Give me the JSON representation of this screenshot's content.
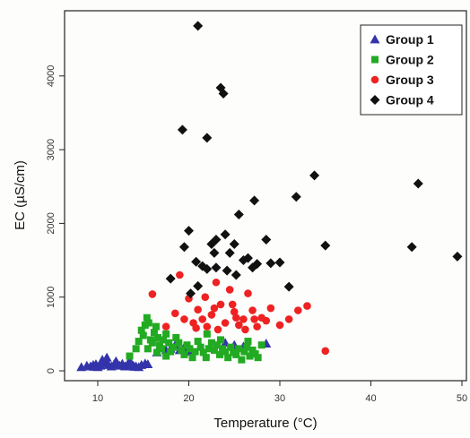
{
  "chart_data": {
    "type": "scatter",
    "xlabel": "Temperature (°C)",
    "ylabel": "EC (µS/cm)",
    "xlim": [
      7,
      51
    ],
    "ylim": [
      -150,
      4750
    ],
    "x_ticks": [
      10,
      20,
      30,
      40,
      50
    ],
    "y_ticks": [
      0,
      1000,
      2000,
      3000,
      4000
    ],
    "grid": false,
    "legend_position": "top-right",
    "series": [
      {
        "name": "Group 1",
        "marker": "triangle",
        "color": "#3333aa",
        "points": [
          [
            8.2,
            50
          ],
          [
            8.8,
            70
          ],
          [
            9.2,
            60
          ],
          [
            9.5,
            80
          ],
          [
            9.8,
            90
          ],
          [
            10.0,
            50
          ],
          [
            10.3,
            70
          ],
          [
            10.6,
            100
          ],
          [
            10.9,
            120
          ],
          [
            11.2,
            80
          ],
          [
            11.5,
            60
          ],
          [
            11.8,
            90
          ],
          [
            12.1,
            110
          ],
          [
            12.4,
            70
          ],
          [
            12.7,
            95
          ],
          [
            13.0,
            60
          ],
          [
            13.3,
            85
          ],
          [
            13.6,
            100
          ],
          [
            13.9,
            70
          ],
          [
            14.2,
            60
          ],
          [
            14.5,
            50
          ],
          [
            14.8,
            80
          ],
          [
            15.2,
            100
          ],
          [
            15.5,
            90
          ],
          [
            11.0,
            180
          ],
          [
            10.5,
            150
          ],
          [
            12.0,
            130
          ],
          [
            13.5,
            140
          ],
          [
            9.6,
            55
          ],
          [
            14.0,
            55
          ],
          [
            16.5,
            250
          ],
          [
            17.0,
            320
          ],
          [
            17.5,
            280
          ],
          [
            18.0,
            300
          ],
          [
            18.5,
            350
          ],
          [
            19.0,
            280
          ],
          [
            19.5,
            320
          ],
          [
            20.0,
            260
          ],
          [
            24.0,
            380
          ],
          [
            25.0,
            350
          ],
          [
            26.0,
            330
          ],
          [
            28.5,
            370
          ]
        ]
      },
      {
        "name": "Group 2",
        "marker": "square",
        "color": "#22aa22",
        "points": [
          [
            14.5,
            400
          ],
          [
            14.8,
            550
          ],
          [
            15.0,
            480
          ],
          [
            15.2,
            620
          ],
          [
            15.4,
            720
          ],
          [
            15.6,
            650
          ],
          [
            15.8,
            420
          ],
          [
            16.0,
            380
          ],
          [
            16.2,
            520
          ],
          [
            16.4,
            600
          ],
          [
            16.6,
            450
          ],
          [
            16.8,
            350
          ],
          [
            17.0,
            300
          ],
          [
            17.2,
            420
          ],
          [
            17.5,
            500
          ],
          [
            17.8,
            380
          ],
          [
            18.0,
            260
          ],
          [
            18.3,
            320
          ],
          [
            18.6,
            450
          ],
          [
            18.9,
            380
          ],
          [
            19.2,
            280
          ],
          [
            19.5,
            220
          ],
          [
            19.8,
            350
          ],
          [
            20.1,
            300
          ],
          [
            20.4,
            180
          ],
          [
            20.7,
            260
          ],
          [
            21.0,
            400
          ],
          [
            21.3,
            320
          ],
          [
            21.6,
            250
          ],
          [
            21.9,
            180
          ],
          [
            22.2,
            300
          ],
          [
            22.5,
            380
          ],
          [
            22.8,
            280
          ],
          [
            23.1,
            350
          ],
          [
            23.4,
            220
          ],
          [
            23.7,
            300
          ],
          [
            24.0,
            260
          ],
          [
            24.3,
            180
          ],
          [
            24.6,
            320
          ],
          [
            24.9,
            250
          ],
          [
            25.2,
            220
          ],
          [
            25.5,
            300
          ],
          [
            25.8,
            150
          ],
          [
            26.1,
            260
          ],
          [
            26.4,
            320
          ],
          [
            26.7,
            200
          ],
          [
            27.0,
            280
          ],
          [
            27.3,
            230
          ],
          [
            27.6,
            180
          ],
          [
            28.0,
            350
          ],
          [
            15.5,
            300
          ],
          [
            16.5,
            250
          ],
          [
            17.5,
            200
          ],
          [
            14.2,
            300
          ],
          [
            13.5,
            200
          ],
          [
            22.0,
            500
          ],
          [
            23.5,
            420
          ],
          [
            26.5,
            400
          ]
        ]
      },
      {
        "name": "Group 3",
        "marker": "circle",
        "color": "#ee2222",
        "points": [
          [
            16.0,
            1040
          ],
          [
            17.5,
            600
          ],
          [
            18.5,
            780
          ],
          [
            19.0,
            1300
          ],
          [
            19.5,
            700
          ],
          [
            20.0,
            980
          ],
          [
            20.5,
            650
          ],
          [
            21.0,
            830
          ],
          [
            21.5,
            700
          ],
          [
            22.0,
            600
          ],
          [
            22.5,
            760
          ],
          [
            23.0,
            1200
          ],
          [
            23.5,
            900
          ],
          [
            24.0,
            650
          ],
          [
            24.5,
            1100
          ],
          [
            25.0,
            800
          ],
          [
            25.5,
            620
          ],
          [
            26.0,
            700
          ],
          [
            26.5,
            1050
          ],
          [
            27.0,
            820
          ],
          [
            27.5,
            600
          ],
          [
            28.0,
            720
          ],
          [
            29.0,
            850
          ],
          [
            30.0,
            620
          ],
          [
            31.0,
            700
          ],
          [
            32.0,
            820
          ],
          [
            33.0,
            880
          ],
          [
            35.0,
            270
          ],
          [
            20.8,
            580
          ],
          [
            22.8,
            850
          ],
          [
            24.8,
            900
          ],
          [
            26.2,
            560
          ],
          [
            21.8,
            1000
          ],
          [
            23.2,
            560
          ],
          [
            25.2,
            720
          ],
          [
            27.2,
            700
          ],
          [
            28.5,
            680
          ]
        ]
      },
      {
        "name": "Group 4",
        "marker": "diamond",
        "color": "#111111",
        "points": [
          [
            21.0,
            4680
          ],
          [
            23.5,
            3840
          ],
          [
            23.8,
            3760
          ],
          [
            19.3,
            3270
          ],
          [
            22.0,
            3160
          ],
          [
            33.8,
            2650
          ],
          [
            45.2,
            2540
          ],
          [
            31.8,
            2360
          ],
          [
            27.2,
            2310
          ],
          [
            25.5,
            2120
          ],
          [
            20.0,
            1900
          ],
          [
            24.0,
            1850
          ],
          [
            28.5,
            1780
          ],
          [
            23.0,
            1780
          ],
          [
            22.5,
            1720
          ],
          [
            19.5,
            1680
          ],
          [
            35.0,
            1700
          ],
          [
            44.5,
            1680
          ],
          [
            49.5,
            1550
          ],
          [
            26.5,
            1530
          ],
          [
            20.8,
            1480
          ],
          [
            21.5,
            1420
          ],
          [
            22.0,
            1380
          ],
          [
            23.0,
            1400
          ],
          [
            24.2,
            1360
          ],
          [
            25.2,
            1300
          ],
          [
            26.0,
            1500
          ],
          [
            27.5,
            1450
          ],
          [
            29.0,
            1460
          ],
          [
            30.0,
            1470
          ],
          [
            18.0,
            1250
          ],
          [
            20.2,
            1050
          ],
          [
            21.0,
            1150
          ],
          [
            24.5,
            1600
          ],
          [
            27.0,
            1400
          ],
          [
            31.0,
            1140
          ],
          [
            22.8,
            1600
          ],
          [
            25.0,
            1720
          ]
        ]
      }
    ]
  }
}
